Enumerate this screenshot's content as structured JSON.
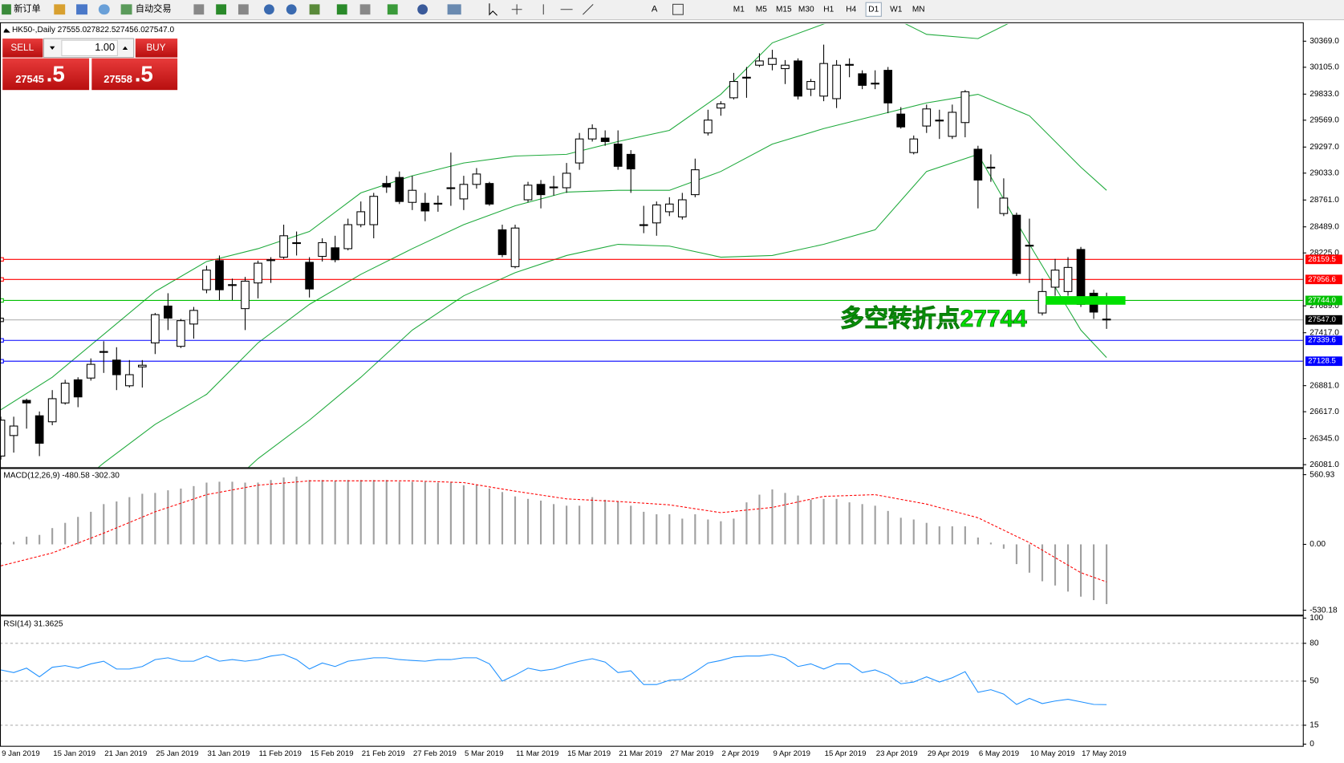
{
  "toolbar": {
    "new_order": "新订单",
    "auto_trading": "自动交易",
    "timeframes": [
      "M1",
      "M5",
      "M15",
      "M30",
      "H1",
      "H4",
      "D1",
      "W1",
      "MN"
    ],
    "selected_timeframe": 6
  },
  "trade_panel": {
    "sell": "SELL",
    "buy": "BUY",
    "lots": "1.00",
    "bid_main": "27545",
    "bid_frac": ".5",
    "ask_main": "27558",
    "ask_frac": ".5"
  },
  "chart_data": [
    {
      "type": "candlestick",
      "title": "HK50-,Daily",
      "info": [
        "27555.0",
        "27822.5",
        "27456.0",
        "27547.0"
      ],
      "categories": [
        "9 Jan 2019",
        null,
        null,
        null,
        "15 Jan 2019",
        null,
        null,
        null,
        "21 Jan 2019",
        null,
        null,
        null,
        "25 Jan 2019",
        null,
        null,
        null,
        "31 Jan 2019",
        null,
        null,
        null,
        "11 Feb 2019",
        null,
        null,
        null,
        "15 Feb 2019",
        null,
        null,
        null,
        "21 Feb 2019",
        null,
        null,
        null,
        "27 Feb 2019",
        null,
        null,
        null,
        "5 Mar 2019",
        null,
        null,
        null,
        "11 Mar 2019",
        null,
        null,
        null,
        "15 Mar 2019",
        null,
        null,
        null,
        "21 Mar 2019",
        null,
        null,
        null,
        "27 Mar 2019",
        null,
        null,
        null,
        "2 Apr 2019",
        null,
        null,
        null,
        "9 Apr 2019",
        null,
        null,
        null,
        "15 Apr 2019",
        null,
        null,
        null,
        "23 Apr 2019",
        null,
        null,
        null,
        "29 Apr 2019",
        null,
        null,
        null,
        "6 May 2019",
        null,
        null,
        null,
        "10 May 2019",
        null,
        null,
        null,
        "17 May 2019",
        null,
        null
      ],
      "open": [
        26168,
        26376,
        26732,
        26576,
        26515,
        26706,
        26940,
        26958,
        27227,
        27140,
        26880,
        27071,
        27314,
        27687,
        27279,
        27505,
        27852,
        28147,
        27904,
        27661,
        27921,
        28147,
        28182,
        28329,
        28130,
        28190,
        28277,
        28268,
        28511,
        28511,
        28928,
        28989,
        28737,
        28728,
        28728,
        28885,
        28772,
        28919,
        28928,
        28459,
        28086,
        28763,
        28919,
        28893,
        28885,
        29136,
        29379,
        29388,
        29327,
        29223,
        28511,
        28529,
        28642,
        28590,
        28815,
        29440,
        29692,
        29796,
        30004,
        30126,
        30134,
        30091,
        30169,
        29883,
        29813,
        29787,
        30126,
        30039,
        29935,
        30074,
        29631,
        29241,
        29510,
        29570,
        29405,
        29545,
        29275,
        29093,
        28624,
        28607,
        28303,
        27617,
        27878,
        27834,
        28260,
        27817,
        27555
      ],
      "high": [
        26567,
        26567,
        26749,
        26619,
        26836,
        26940,
        26966,
        27157,
        27331,
        27270,
        27140,
        27140,
        27617,
        27817,
        27557,
        27678,
        28095,
        28199,
        27965,
        27982,
        28147,
        28182,
        28511,
        28442,
        28182,
        28373,
        28399,
        28572,
        28746,
        28833,
        29006,
        29050,
        29006,
        28833,
        28806,
        29241,
        29006,
        29084,
        28945,
        28511,
        28511,
        28945,
        28963,
        29006,
        29136,
        29440,
        29527,
        29466,
        29466,
        29266,
        28702,
        28746,
        28789,
        28833,
        29180,
        29675,
        29761,
        30048,
        30108,
        30247,
        30282,
        30178,
        30195,
        29987,
        30334,
        30178,
        30195,
        30074,
        30074,
        30108,
        29701,
        29414,
        29727,
        29675,
        29727,
        29874,
        29310,
        29223,
        28980,
        28633,
        28572,
        27965,
        28164,
        28182,
        28286,
        27852,
        27822.5
      ],
      "low": [
        26133,
        26203,
        26446,
        26168,
        26480,
        26689,
        26663,
        26932,
        27010,
        26836,
        26862,
        26862,
        27201,
        27444,
        27262,
        27357,
        27817,
        27748,
        27748,
        27444,
        27765,
        27921,
        28164,
        28199,
        27774,
        28138,
        28130,
        28251,
        28485,
        28373,
        28833,
        28720,
        28659,
        28546,
        28642,
        28702,
        28659,
        28876,
        28702,
        28182,
        28069,
        28737,
        28676,
        28806,
        28833,
        29067,
        29353,
        29310,
        29067,
        28833,
        28425,
        28399,
        28598,
        28563,
        28789,
        29414,
        29614,
        29779,
        29796,
        30108,
        30074,
        29935,
        29779,
        29813,
        29761,
        29692,
        30004,
        29883,
        29883,
        29640,
        29484,
        29223,
        29440,
        29379,
        29379,
        29396,
        28676,
        28945,
        28598,
        27991,
        27921,
        27592,
        27791,
        27791,
        27678,
        27557,
        27456
      ],
      "close": [
        26532,
        26472,
        26706,
        26298,
        26749,
        26906,
        26767,
        27097,
        27218,
        26992,
        26992,
        27088,
        27600,
        27565,
        27539,
        27643,
        28051,
        27852,
        27895,
        27939,
        28121,
        28156,
        28399,
        28320,
        27860,
        28329,
        28156,
        28511,
        28642,
        28798,
        28893,
        28746,
        28859,
        28650,
        28720,
        28876,
        28919,
        29024,
        28720,
        28208,
        28477,
        28911,
        28815,
        28885,
        29032,
        29379,
        29484,
        29353,
        29102,
        29076,
        28503,
        28711,
        28720,
        28763,
        29067,
        29570,
        29735,
        29961,
        29996,
        30169,
        30195,
        30126,
        29813,
        29961,
        30143,
        30126,
        30134,
        29922,
        29944,
        29744,
        29501,
        29379,
        29683,
        29561,
        29649,
        29857,
        28963,
        29084,
        28780,
        28017,
        28294,
        27834,
        28051,
        28078,
        27704,
        27626,
        27547
      ],
      "up_color": "#ffffff",
      "down_color": "#000000",
      "bands": {
        "color": "#1faa3c",
        "x": [
          0,
          4,
          8,
          12,
          16,
          20,
          24,
          28,
          32,
          36,
          40,
          44,
          48,
          52,
          56,
          60,
          64,
          68,
          72,
          76,
          80,
          84,
          86
        ],
        "upper": [
          26637,
          26966,
          27400,
          27834,
          28138,
          28268,
          28442,
          28833,
          29006,
          29136,
          29206,
          29223,
          29353,
          29466,
          29831,
          30352,
          30543,
          30699,
          30438,
          30395,
          30655,
          30742,
          30551
        ],
        "middle": [
          25230,
          25664,
          26098,
          26489,
          26793,
          27314,
          27704,
          28008,
          28268,
          28511,
          28702,
          28841,
          28859,
          28859,
          29050,
          29327,
          29484,
          29614,
          29744,
          29831,
          29614,
          29093,
          28859
        ],
        "lower": [
          23842,
          24189,
          24710,
          25230,
          25664,
          26142,
          26532,
          26966,
          27444,
          27791,
          28025,
          28199,
          28312,
          28294,
          28182,
          28199,
          28312,
          28459,
          29050,
          29223,
          28312,
          27444,
          27166
        ]
      },
      "levels": [
        {
          "value": 28159.5,
          "label": "28159.5",
          "color": "#ff0000"
        },
        {
          "value": 27956.6,
          "label": "27956.6",
          "color": "#ff0000"
        },
        {
          "value": 27744,
          "label": "27744.0",
          "color": "#00c000"
        },
        {
          "value": 27547,
          "label": "27547.0",
          "color": "#000000"
        },
        {
          "value": 27339.6,
          "label": "27339.6",
          "color": "#0000ff"
        },
        {
          "value": 27128.5,
          "label": "27128.5",
          "color": "#0000ff"
        }
      ],
      "annotation": {
        "text": "多空转折点27744",
        "value": 27744,
        "color": "#00e000"
      },
      "ylim": [
        26055,
        30543
      ],
      "yticks": [
        {
          "value": 30369,
          "label": "30369.0"
        },
        {
          "value": 30105,
          "label": "30105.0"
        },
        {
          "value": 29833,
          "label": "29833.0"
        },
        {
          "value": 29569,
          "label": "29569.0"
        },
        {
          "value": 29297,
          "label": "29297.0"
        },
        {
          "value": 29033,
          "label": "29033.0"
        },
        {
          "value": 28761,
          "label": "28761.0"
        },
        {
          "value": 28489,
          "label": "28489.0"
        },
        {
          "value": 28225,
          "label": "28225.0"
        },
        {
          "value": 27689,
          "label": "27689.0"
        },
        {
          "value": 27417,
          "label": "27417.0"
        },
        {
          "value": 26881,
          "label": "26881.0"
        },
        {
          "value": 26617,
          "label": "26617.0"
        },
        {
          "value": 26345,
          "label": "26345.0"
        },
        {
          "value": 26081,
          "label": "26081.0"
        }
      ]
    },
    {
      "type": "macd",
      "title": "MACD(12,26,9) -480.58 -302.30",
      "color": "#a0a0a0",
      "values": [
        14,
        21,
        62,
        76,
        131,
        173,
        221,
        262,
        324,
        345,
        380,
        407,
        414,
        435,
        449,
        469,
        497,
        504,
        504,
        497,
        497,
        518,
        538,
        545,
        518,
        518,
        511,
        518,
        518,
        518,
        518,
        504,
        504,
        504,
        497,
        497,
        476,
        476,
        449,
        421,
        386,
        366,
        352,
        324,
        311,
        311,
        380,
        359,
        345,
        311,
        262,
        242,
        242,
        207,
        242,
        200,
        186,
        207,
        338,
        400,
        442,
        414,
        393,
        359,
        366,
        366,
        338,
        324,
        311,
        269,
        214,
        200,
        173,
        145,
        145,
        145,
        55,
        14,
        -35,
        -159,
        -228,
        -297,
        -331,
        -380,
        -421,
        -449,
        -480.58
      ],
      "signal": {
        "color": "#ff0000",
        "x": [
          0,
          4,
          8,
          12,
          16,
          20,
          24,
          28,
          32,
          36,
          40,
          44,
          48,
          52,
          56,
          60,
          64,
          68,
          72,
          76,
          80,
          84,
          86
        ],
        "values": [
          -173,
          -69,
          90,
          262,
          400,
          476,
          511,
          511,
          511,
          497,
          428,
          366,
          345,
          318,
          255,
          297,
          386,
          400,
          324,
          214,
          14,
          -228,
          -302.3
        ]
      },
      "ylim": [
        -566,
        600
      ],
      "yticks": [
        {
          "value": 560.93,
          "label": "560.93"
        },
        {
          "value": 0,
          "label": "0.00"
        },
        {
          "value": -530.18,
          "label": "-530.18"
        }
      ]
    },
    {
      "type": "line",
      "title": "RSI(14) 31.3625",
      "color": "#1e90ff",
      "values": [
        58.9,
        56.8,
        60.3,
        53.4,
        61.0,
        62.3,
        60.3,
        63.7,
        65.8,
        59.6,
        59.6,
        61.6,
        67.1,
        68.5,
        65.8,
        65.8,
        69.9,
        65.8,
        67.1,
        65.8,
        67.1,
        69.9,
        71.2,
        67.1,
        59.6,
        64.4,
        61.6,
        65.8,
        67.1,
        68.5,
        68.5,
        67.1,
        66.4,
        65.8,
        67.1,
        67.1,
        68.5,
        68.5,
        63.7,
        50.0,
        54.8,
        60.3,
        58.2,
        59.6,
        63.0,
        65.8,
        67.8,
        65.1,
        56.8,
        58.2,
        47.3,
        47.3,
        50.7,
        51.4,
        57.5,
        64.4,
        66.4,
        69.2,
        69.9,
        69.9,
        71.2,
        68.5,
        61.6,
        63.7,
        59.6,
        63.7,
        63.7,
        56.8,
        58.9,
        54.8,
        47.9,
        49.3,
        53.4,
        49.3,
        52.7,
        57.5,
        41.1,
        43.2,
        39.7,
        31.5,
        36.3,
        32.2,
        34.2,
        35.6,
        33.6,
        31.5,
        31.3625
      ],
      "ylim": [
        0,
        100
      ],
      "yticks": [
        100,
        80,
        50,
        15,
        0
      ]
    }
  ]
}
